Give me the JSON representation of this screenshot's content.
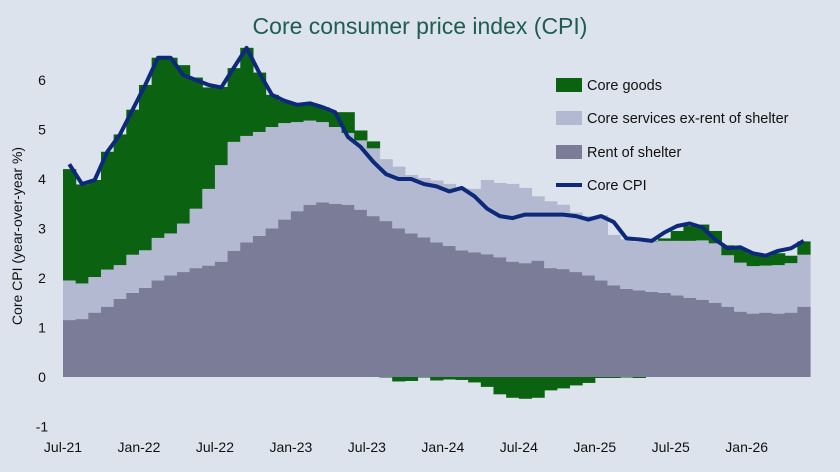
{
  "chart_data": {
    "type": "area",
    "title": "Core consumer price index (CPI)",
    "ylabel": "Core CPI (year-over-year %)",
    "xlabel": "",
    "ylim": [
      -1,
      6.6
    ],
    "yticks": [
      -1,
      0,
      1,
      2,
      3,
      4,
      5,
      6
    ],
    "xticks": [
      {
        "label": "Jul-21",
        "index": 0
      },
      {
        "label": "Jan-22",
        "index": 6
      },
      {
        "label": "Jul-22",
        "index": 12
      },
      {
        "label": "Jan-23",
        "index": 18
      },
      {
        "label": "Jul-23",
        "index": 24
      },
      {
        "label": "Jan-24",
        "index": 30
      },
      {
        "label": "Jul-24",
        "index": 36
      },
      {
        "label": "Jan-25",
        "index": 42
      },
      {
        "label": "Jul-25",
        "index": 48
      },
      {
        "label": "Jan-26",
        "index": 54
      }
    ],
    "grid": false,
    "legend_position": "right",
    "colors": {
      "core_goods": "#0b6312",
      "core_services": "#b3b9d1",
      "rent_of_shelter": "#7b7c98",
      "core_cpi": "#0d2a7a"
    },
    "series": [
      {
        "name": "Rent of shelter",
        "color": "#7b7c98",
        "values": [
          1.15,
          1.17,
          1.3,
          1.42,
          1.58,
          1.7,
          1.8,
          1.95,
          2.05,
          2.12,
          2.2,
          2.25,
          2.33,
          2.55,
          2.72,
          2.85,
          3.0,
          3.18,
          3.35,
          3.48,
          3.53,
          3.5,
          3.48,
          3.38,
          3.25,
          3.15,
          3.0,
          2.9,
          2.82,
          2.72,
          2.65,
          2.56,
          2.52,
          2.48,
          2.42,
          2.33,
          2.3,
          2.35,
          2.2,
          2.18,
          2.12,
          2.05,
          1.95,
          1.85,
          1.78,
          1.75,
          1.72,
          1.7,
          1.65,
          1.6,
          1.56,
          1.5,
          1.42,
          1.32,
          1.28,
          1.3,
          1.28,
          1.3,
          1.42
        ]
      },
      {
        "name": "Core services ex-rent of shelter",
        "color": "#b3b9d1",
        "values": [
          0.8,
          0.72,
          0.72,
          0.75,
          0.68,
          0.77,
          0.76,
          0.86,
          0.85,
          0.98,
          1.2,
          1.55,
          1.95,
          2.2,
          2.15,
          2.1,
          2.05,
          1.95,
          1.8,
          1.7,
          1.62,
          1.55,
          1.45,
          1.4,
          1.37,
          1.25,
          1.25,
          1.18,
          1.2,
          1.25,
          1.25,
          1.25,
          1.28,
          1.5,
          1.5,
          1.57,
          1.52,
          1.3,
          1.35,
          1.3,
          1.2,
          1.2,
          1.32,
          1.02,
          1.0,
          0.98,
          1.02,
          1.05,
          1.1,
          1.15,
          1.2,
          1.2,
          1.04,
          0.99,
          0.96,
          0.95,
          0.98,
          1.0,
          1.05
        ]
      },
      {
        "name": "Core goods",
        "color": "#0b6312",
        "values": [
          2.25,
          2.0,
          1.96,
          2.38,
          2.64,
          2.93,
          3.34,
          3.64,
          3.55,
          3.2,
          2.65,
          2.05,
          1.58,
          1.49,
          1.78,
          1.2,
          0.65,
          0.45,
          0.35,
          0.35,
          0.3,
          0.3,
          0.42,
          0.2,
          0.14,
          -0.01,
          -0.09,
          -0.08,
          -0.01,
          -0.07,
          -0.05,
          -0.06,
          -0.11,
          -0.2,
          -0.35,
          -0.42,
          -0.44,
          -0.42,
          -0.27,
          -0.23,
          -0.17,
          -0.12,
          -0.02,
          -0.02,
          -0.01,
          -0.02,
          0.01,
          0.05,
          0.2,
          0.3,
          0.32,
          0.25,
          0.2,
          0.29,
          0.26,
          0.2,
          0.24,
          0.15,
          0.27
        ]
      },
      {
        "name": "Core CPI",
        "color": "#0d2a7a",
        "type": "line",
        "values": [
          4.3,
          3.9,
          3.98,
          4.55,
          4.9,
          5.4,
          5.9,
          6.45,
          6.45,
          6.1,
          6.0,
          5.9,
          5.85,
          6.25,
          6.65,
          6.15,
          5.7,
          5.58,
          5.5,
          5.53,
          5.45,
          5.35,
          4.85,
          4.65,
          4.35,
          4.1,
          4.0,
          4.0,
          3.9,
          3.85,
          3.75,
          3.82,
          3.65,
          3.4,
          3.25,
          3.21,
          3.28,
          3.28,
          3.28,
          3.28,
          3.25,
          3.18,
          3.25,
          3.13,
          2.8,
          2.78,
          2.75,
          2.92,
          3.05,
          3.1,
          3.02,
          2.78,
          2.6,
          2.62,
          2.5,
          2.45,
          2.55,
          2.6,
          2.75
        ]
      }
    ]
  }
}
